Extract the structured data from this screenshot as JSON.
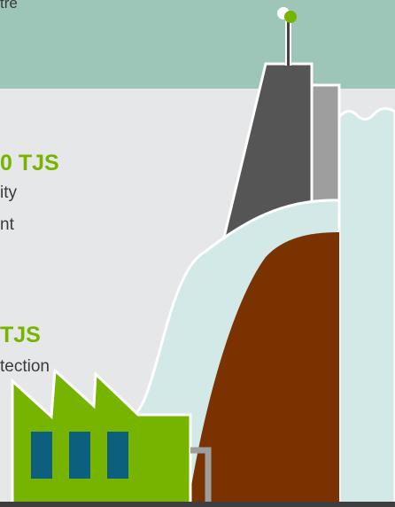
{
  "header": {
    "fragment_text": "tre",
    "band_color": "#9dc6b9"
  },
  "stat_1": {
    "amount": "0 TJS",
    "description_line_1": "ity",
    "description_line_2": "nt"
  },
  "stat_2": {
    "amount": "TJS",
    "description": "tection"
  },
  "palette": {
    "accent_green": "#77b400",
    "dam_dark": "#555555",
    "dam_light": "#9e9e9e",
    "water": "#d2e9e7",
    "earth": "#7a3300",
    "window_blue": "#0c5f7d",
    "ground": "#3e3e3e",
    "background": "#e6e7e9"
  },
  "icons": {
    "antenna": "antenna-icon",
    "factory": "factory-icon",
    "dam": "dam-icon"
  }
}
